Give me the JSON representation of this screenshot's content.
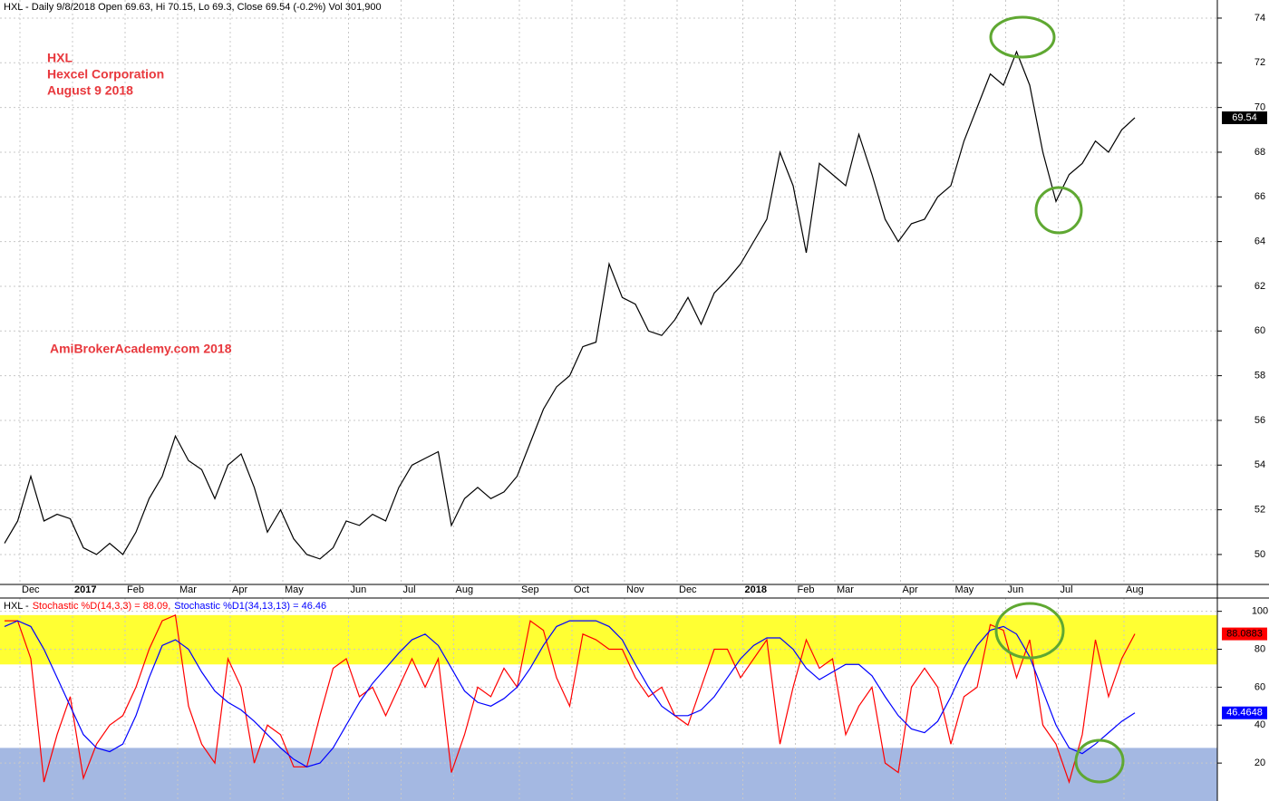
{
  "chart_data": [
    {
      "type": "line",
      "title": "HXL - Daily 9/8/2018 Open 69.63, Hi 70.15, Lo 69.3, Close 69.54 (-0.2%) Vol 301,900",
      "annotations": [
        "HXL",
        "Hexcel Corporation",
        "August 9 2018",
        "AmiBrokerAcademy.com  2018"
      ],
      "categories": [
        null,
        null,
        "Dec",
        null,
        null,
        null,
        "2017",
        null,
        null,
        null,
        "Feb",
        null,
        null,
        null,
        "Mar",
        null,
        null,
        null,
        "Apr",
        null,
        null,
        null,
        "May",
        null,
        null,
        null,
        null,
        "Jun",
        null,
        null,
        null,
        "Jul",
        null,
        null,
        null,
        "Aug",
        null,
        null,
        null,
        null,
        "Sep",
        null,
        null,
        null,
        "Oct",
        null,
        null,
        null,
        "Nov",
        null,
        null,
        null,
        "Dec",
        null,
        null,
        null,
        null,
        "2018",
        null,
        null,
        null,
        "Feb",
        null,
        null,
        "Mar",
        null,
        null,
        null,
        null,
        "Apr",
        null,
        null,
        null,
        "May",
        null,
        null,
        null,
        "Jun",
        null,
        null,
        null,
        "Jul",
        null,
        null,
        null,
        null,
        "Aug"
      ],
      "series": [
        {
          "name": "HXL",
          "color": "#000000",
          "last_label": "69.54",
          "values": [
            50.5,
            51.5,
            53.5,
            51.5,
            51.8,
            51.6,
            50.3,
            50.0,
            50.5,
            50.0,
            51,
            52.5,
            53.5,
            55.3,
            54.2,
            53.8,
            52.5,
            54.0,
            54.5,
            53.0,
            51.0,
            52.0,
            50.7,
            50.0,
            49.8,
            50.3,
            51.5,
            51.3,
            51.8,
            51.5,
            53.0,
            54.0,
            54.3,
            54.6,
            51.3,
            52.5,
            53.0,
            52.5,
            52.8,
            53.5,
            55.0,
            56.5,
            57.5,
            58.0,
            59.3,
            59.5,
            63.0,
            61.5,
            61.2,
            60.0,
            59.8,
            60.5,
            61.5,
            60.3,
            61.7,
            62.3,
            63.0,
            64.0,
            65.0,
            68.0,
            66.5,
            63.5,
            67.5,
            67.0,
            66.5,
            68.8,
            67.0,
            65.0,
            64.0,
            64.8,
            65.0,
            66.0,
            66.5,
            68.5,
            70.0,
            71.5,
            71.0,
            72.5,
            71.0,
            68.0,
            65.8,
            67.0,
            67.5,
            68.5,
            68.0,
            69.0,
            69.54
          ]
        }
      ],
      "ylim": [
        48.66,
        74.81
      ],
      "yticks": [
        50,
        52,
        54,
        56,
        58,
        60,
        62,
        64,
        66,
        68,
        70,
        72,
        74
      ],
      "grid": true
    },
    {
      "type": "line",
      "title": "HXL -",
      "series": [
        {
          "name": "Stochastic %D(14,3,3) = 88.09,",
          "color": "#ff0000",
          "last_label": "88.0883",
          "values": [
            95,
            95,
            75,
            10,
            35,
            55,
            12,
            30,
            40,
            45,
            60,
            80,
            95,
            98,
            50,
            30,
            20,
            75,
            60,
            20,
            40,
            35,
            18,
            18,
            45,
            70,
            75,
            55,
            60,
            45,
            60,
            75,
            60,
            75,
            15,
            35,
            60,
            55,
            70,
            60,
            95,
            90,
            65,
            50,
            88,
            85,
            80,
            80,
            65,
            55,
            60,
            45,
            40,
            60,
            80,
            80,
            65,
            75,
            85,
            30,
            60,
            85,
            70,
            75,
            35,
            50,
            60,
            20,
            15,
            60,
            70,
            60,
            30,
            55,
            60,
            93,
            90,
            65,
            85,
            40,
            30,
            10,
            35,
            85,
            55,
            75,
            88.0883
          ]
        },
        {
          "name": "Stochastic %D1(34,13,13) = 46.46",
          "color": "#0000ff",
          "last_label": "46.4648",
          "values": [
            92,
            95,
            92,
            80,
            65,
            50,
            35,
            28,
            26,
            30,
            45,
            65,
            82,
            85,
            80,
            68,
            58,
            52,
            48,
            42,
            35,
            28,
            22,
            18,
            20,
            28,
            40,
            52,
            62,
            70,
            78,
            85,
            88,
            82,
            70,
            58,
            52,
            50,
            54,
            60,
            70,
            82,
            92,
            95,
            95,
            95,
            92,
            85,
            72,
            60,
            50,
            45,
            45,
            48,
            55,
            65,
            75,
            82,
            86,
            86,
            80,
            70,
            64,
            68,
            72,
            72,
            66,
            55,
            45,
            38,
            36,
            42,
            55,
            70,
            82,
            90,
            92,
            88,
            76,
            58,
            40,
            28,
            25,
            30,
            36,
            42,
            46.4648
          ]
        }
      ],
      "bands": [
        {
          "from": 72,
          "to": 98,
          "color": "#ffff33"
        },
        {
          "from": 0,
          "to": 28,
          "color": "#a4b8e2"
        }
      ],
      "ylim": [
        0,
        107
      ],
      "yticks": [
        20,
        40,
        60,
        80,
        100
      ],
      "grid": true
    }
  ]
}
